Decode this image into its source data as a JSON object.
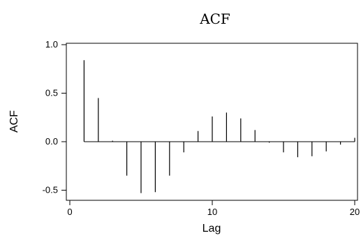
{
  "chart_data": {
    "type": "bar",
    "subtype": "acf-stem",
    "title": "ACF",
    "xlabel": "Lag",
    "ylabel": "ACF",
    "xlim": [
      0,
      20
    ],
    "ylim": [
      -0.55,
      1.0
    ],
    "xticks": [
      0,
      10,
      20
    ],
    "xtick_labels": [
      "0",
      "10",
      "20"
    ],
    "yticks": [
      -0.5,
      0.0,
      0.5,
      1.0
    ],
    "ytick_labels": [
      "-0.5",
      "0.0",
      "0.5",
      "1.0"
    ],
    "grid": false,
    "baseline": 0.0,
    "x": [
      1,
      2,
      3,
      4,
      5,
      6,
      7,
      8,
      9,
      10,
      11,
      12,
      13,
      14,
      15,
      16,
      17,
      18,
      19,
      20
    ],
    "values": [
      0.84,
      0.45,
      0.01,
      -0.35,
      -0.53,
      -0.52,
      -0.35,
      -0.11,
      0.11,
      0.26,
      0.3,
      0.24,
      0.12,
      -0.01,
      -0.11,
      -0.16,
      -0.15,
      -0.1,
      -0.03,
      0.04
    ],
    "line_color": "#000000"
  }
}
